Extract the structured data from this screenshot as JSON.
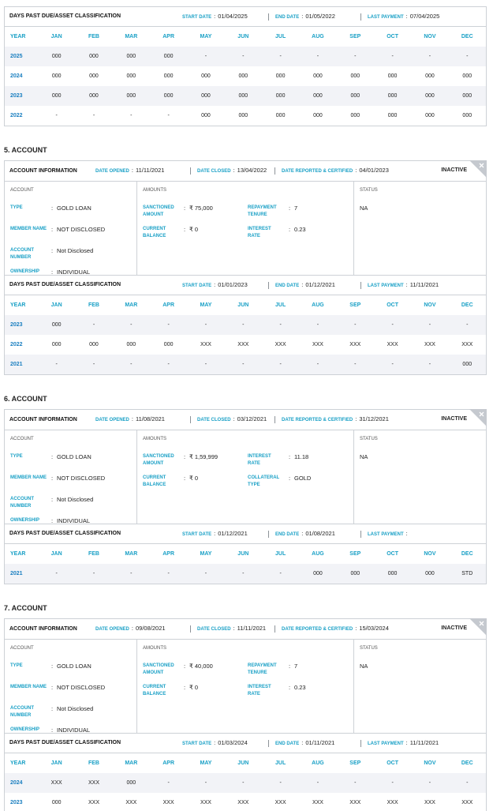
{
  "labels": {
    "dpd_title": "DAYS PAST DUE/ASSET CLASSIFICATION",
    "start_date": "START DATE",
    "end_date": "END DATE",
    "last_payment": "LAST PAYMENT",
    "account_information": "ACCOUNT INFORMATION",
    "date_opened": "DATE OPENED",
    "date_closed": "DATE CLOSED",
    "date_reported": "DATE REPORTED & CERTIFIED",
    "account": "ACCOUNT",
    "amounts": "AMOUNTS",
    "status": "STATUS",
    "separator": ":"
  },
  "columns": [
    "YEAR",
    "JAN",
    "FEB",
    "MAR",
    "APR",
    "MAY",
    "JUN",
    "JUL",
    "AUG",
    "SEP",
    "OCT",
    "NOV",
    "DEC"
  ],
  "top_dpd": {
    "start_date": "01/04/2025",
    "end_date": "01/05/2022",
    "last_payment": "07/04/2025",
    "rows": [
      [
        "2025",
        "000",
        "000",
        "000",
        "000",
        "-",
        "-",
        "-",
        "-",
        "-",
        "-",
        "-",
        "-"
      ],
      [
        "2024",
        "000",
        "000",
        "000",
        "000",
        "000",
        "000",
        "000",
        "000",
        "000",
        "000",
        "000",
        "000"
      ],
      [
        "2023",
        "000",
        "000",
        "000",
        "000",
        "000",
        "000",
        "000",
        "000",
        "000",
        "000",
        "000",
        "000"
      ],
      [
        "2022",
        "-",
        "-",
        "-",
        "-",
        "000",
        "000",
        "000",
        "000",
        "000",
        "000",
        "000",
        "000"
      ]
    ]
  },
  "accounts": [
    {
      "heading": "5. ACCOUNT",
      "badge": "INACTIVE",
      "date_opened": "11/11/2021",
      "date_closed": "13/04/2022",
      "date_reported": "04/01/2023",
      "details": [
        {
          "label": "TYPE",
          "value": "GOLD LOAN"
        },
        {
          "label": "MEMBER NAME",
          "value": "NOT DISCLOSED"
        },
        {
          "label": "ACCOUNT NUMBER",
          "value": "Not Disclosed"
        },
        {
          "label": "OWNERSHIP",
          "value": "INDIVIDUAL"
        }
      ],
      "amounts": [
        {
          "label": "SANCTIONED AMOUNT",
          "value": "₹ 75,000"
        },
        {
          "label": "REPAYMENT TENURE",
          "value": "7"
        },
        {
          "label": "CURRENT BALANCE",
          "value": "₹ 0"
        },
        {
          "label": "INTEREST RATE",
          "value": "0.23"
        }
      ],
      "status": "NA",
      "dpd": {
        "start_date": "01/01/2023",
        "end_date": "01/12/2021",
        "last_payment": "11/11/2021",
        "rows": [
          [
            "2023",
            "000",
            "-",
            "-",
            "-",
            "-",
            "-",
            "-",
            "-",
            "-",
            "-",
            "-",
            "-"
          ],
          [
            "2022",
            "000",
            "000",
            "000",
            "000",
            "XXX",
            "XXX",
            "XXX",
            "XXX",
            "XXX",
            "XXX",
            "XXX",
            "XXX"
          ],
          [
            "2021",
            "-",
            "-",
            "-",
            "-",
            "-",
            "-",
            "-",
            "-",
            "-",
            "-",
            "-",
            "000"
          ]
        ]
      }
    },
    {
      "heading": "6. ACCOUNT",
      "badge": "INACTIVE",
      "date_opened": "11/08/2021",
      "date_closed": "03/12/2021",
      "date_reported": "31/12/2021",
      "details": [
        {
          "label": "TYPE",
          "value": "GOLD LOAN"
        },
        {
          "label": "MEMBER NAME",
          "value": "NOT DISCLOSED"
        },
        {
          "label": "ACCOUNT NUMBER",
          "value": "Not Disclosed"
        },
        {
          "label": "OWNERSHIP",
          "value": "INDIVIDUAL"
        }
      ],
      "amounts": [
        {
          "label": "SANCTIONED AMOUNT",
          "value": "₹ 1,59,999"
        },
        {
          "label": "INTEREST RATE",
          "value": "11.18"
        },
        {
          "label": "CURRENT BALANCE",
          "value": "₹ 0"
        },
        {
          "label": "COLLATERAL TYPE",
          "value": "GOLD"
        }
      ],
      "status": "NA",
      "dpd": {
        "start_date": "01/12/2021",
        "end_date": "01/08/2021",
        "rows": [
          [
            "2021",
            "-",
            "-",
            "-",
            "-",
            "-",
            "-",
            "-",
            "000",
            "000",
            "000",
            "000",
            "STD"
          ]
        ]
      }
    },
    {
      "heading": "7. ACCOUNT",
      "badge": "INACTIVE",
      "date_opened": "09/08/2021",
      "date_closed": "11/11/2021",
      "date_reported": "15/03/2024",
      "details": [
        {
          "label": "TYPE",
          "value": "GOLD LOAN"
        },
        {
          "label": "MEMBER NAME",
          "value": "NOT DISCLOSED"
        },
        {
          "label": "ACCOUNT NUMBER",
          "value": "Not Disclosed"
        },
        {
          "label": "OWNERSHIP",
          "value": "INDIVIDUAL"
        }
      ],
      "amounts": [
        {
          "label": "SANCTIONED AMOUNT",
          "value": "₹ 40,000"
        },
        {
          "label": "REPAYMENT TENURE",
          "value": "7"
        },
        {
          "label": "CURRENT BALANCE",
          "value": "₹ 0"
        },
        {
          "label": "INTEREST RATE",
          "value": "0.23"
        }
      ],
      "status": "NA",
      "dpd": {
        "start_date": "01/03/2024",
        "end_date": "01/11/2021",
        "last_payment": "11/11/2021",
        "rows": [
          [
            "2024",
            "XXX",
            "XXX",
            "000",
            "-",
            "-",
            "-",
            "-",
            "-",
            "-",
            "-",
            "-",
            "-"
          ],
          [
            "2023",
            "000",
            "XXX",
            "XXX",
            "XXX",
            "XXX",
            "XXX",
            "XXX",
            "XXX",
            "XXX",
            "XXX",
            "XXX",
            "XXX"
          ]
        ]
      }
    }
  ]
}
